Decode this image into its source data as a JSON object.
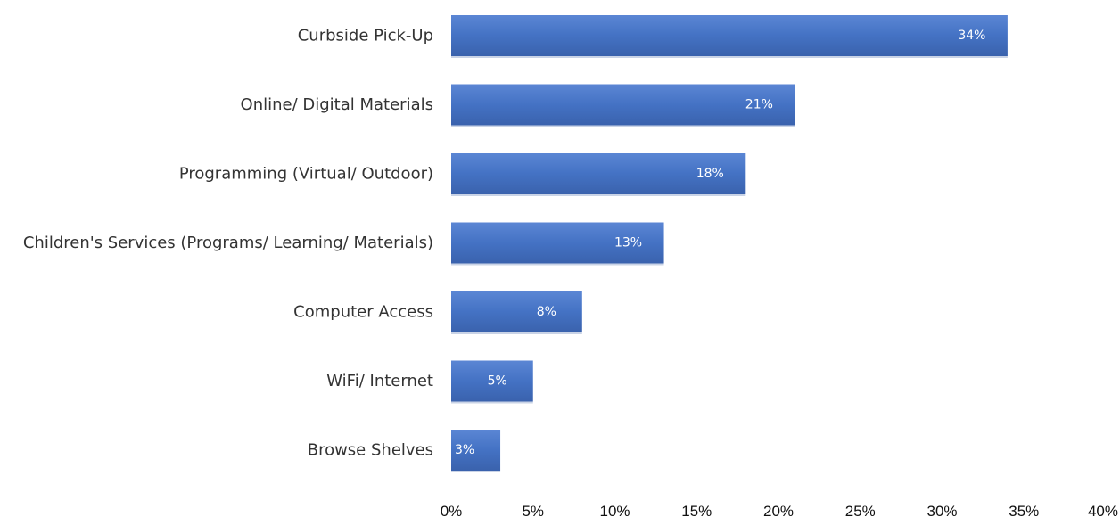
{
  "chart_data": {
    "type": "bar",
    "orientation": "horizontal",
    "title": "",
    "xlabel": "",
    "ylabel": "",
    "categories": [
      "Curbside Pick-Up",
      "Online/ Digital Materials",
      "Programming (Virtual/ Outdoor)",
      "Children's Services (Programs/ Learning/ Materials)",
      "Computer Access",
      "WiFi/ Internet",
      "Browse Shelves"
    ],
    "values": [
      34,
      21,
      18,
      13,
      8,
      5,
      3
    ],
    "value_labels": [
      "34%",
      "21%",
      "18%",
      "13%",
      "8%",
      "5%",
      "3%"
    ],
    "xlim": [
      0,
      40
    ],
    "xticks": [
      0,
      5,
      10,
      15,
      20,
      25,
      30,
      35,
      40
    ],
    "xtick_labels": [
      "0%",
      "5%",
      "10%",
      "15%",
      "20%",
      "25%",
      "30%",
      "35%",
      "40%"
    ],
    "grid": false,
    "legend": "none",
    "colors": {
      "bar": "#4472C4",
      "bar_dark": "#3a62ad",
      "bar_light": "#5b86d4",
      "value_text": "#ffffff"
    }
  }
}
